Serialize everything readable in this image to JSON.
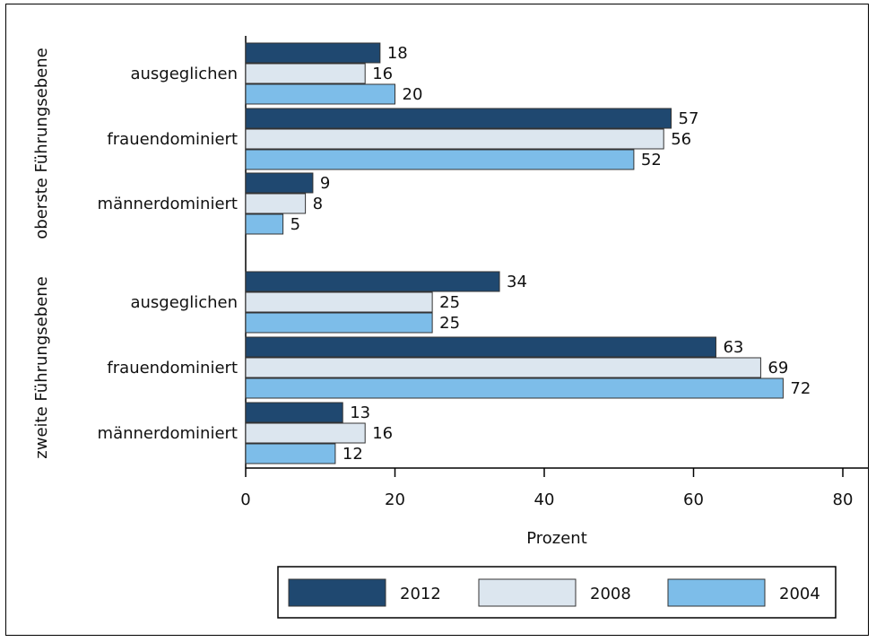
{
  "chart_data": {
    "type": "bar",
    "orientation": "horizontal",
    "xlabel": "Prozent",
    "xlim": [
      0,
      80
    ],
    "xticks": [
      0,
      20,
      40,
      60,
      80
    ],
    "groups": [
      {
        "label": "oberste Führungsebene",
        "categories": [
          "ausgeglichen",
          "frauendominiert",
          "männerdominiert"
        ],
        "series": [
          {
            "name": "2012",
            "values": [
              18,
              57,
              9
            ]
          },
          {
            "name": "2008",
            "values": [
              16,
              56,
              8
            ]
          },
          {
            "name": "2004",
            "values": [
              20,
              52,
              5
            ]
          }
        ]
      },
      {
        "label": "zweite Führungsebene",
        "categories": [
          "ausgeglichen",
          "frauendominiert",
          "männerdominiert"
        ],
        "series": [
          {
            "name": "2012",
            "values": [
              34,
              63,
              13
            ]
          },
          {
            "name": "2008",
            "values": [
              25,
              69,
              16
            ]
          },
          {
            "name": "2004",
            "values": [
              25,
              72,
              12
            ]
          }
        ]
      }
    ],
    "legend": {
      "placement": "bottom",
      "entries": [
        "2012",
        "2008",
        "2004"
      ]
    },
    "colors": {
      "2012": "#1f4870",
      "2008": "#dce6ef",
      "2004": "#7dbde9"
    },
    "grid": false
  }
}
